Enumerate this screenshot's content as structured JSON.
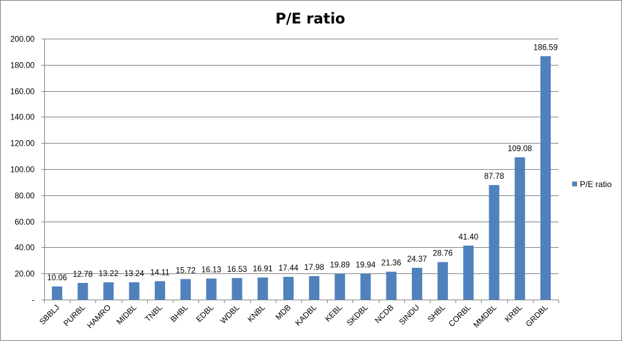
{
  "chart_data": {
    "type": "bar",
    "title": "P/E ratio",
    "xlabel": "",
    "ylabel": "",
    "ylim": [
      0,
      200
    ],
    "yticks": [
      "-",
      "20.00",
      "40.00",
      "60.00",
      "80.00",
      "100.00",
      "120.00",
      "140.00",
      "160.00",
      "180.00",
      "200.00"
    ],
    "grid": true,
    "legend_position": "right",
    "colors": {
      "bar": "#4F81BD",
      "grid": "#868686",
      "axis": "#868686"
    },
    "categories": [
      "SBBLJ",
      "PURBL",
      "HAMRO",
      "MIDBL",
      "TNBL",
      "BHBL",
      "EDBL",
      "WDBL",
      "KNBL",
      "MDB",
      "KADBL",
      "KEBL",
      "SKDBL",
      "NCDB",
      "SINDU",
      "SHBL",
      "CORBL",
      "MMDBL",
      "KRBL",
      "GRDBL"
    ],
    "series": [
      {
        "name": "P/E ratio",
        "values": [
          10.06,
          12.78,
          13.22,
          13.24,
          14.11,
          15.72,
          16.13,
          16.53,
          16.91,
          17.44,
          17.98,
          19.89,
          19.94,
          21.36,
          24.37,
          28.76,
          41.4,
          87.78,
          109.08,
          186.59
        ],
        "labels": [
          "10.06",
          "12.78",
          "13.22",
          "13.24",
          "14.11",
          "15.72",
          "16.13",
          "16.53",
          "16.91",
          "17.44",
          "17.98",
          "19.89",
          "19.94",
          "21.36",
          "24.37",
          "28.76",
          "41.40",
          "87.78",
          "109.08",
          "186.59"
        ]
      }
    ]
  }
}
